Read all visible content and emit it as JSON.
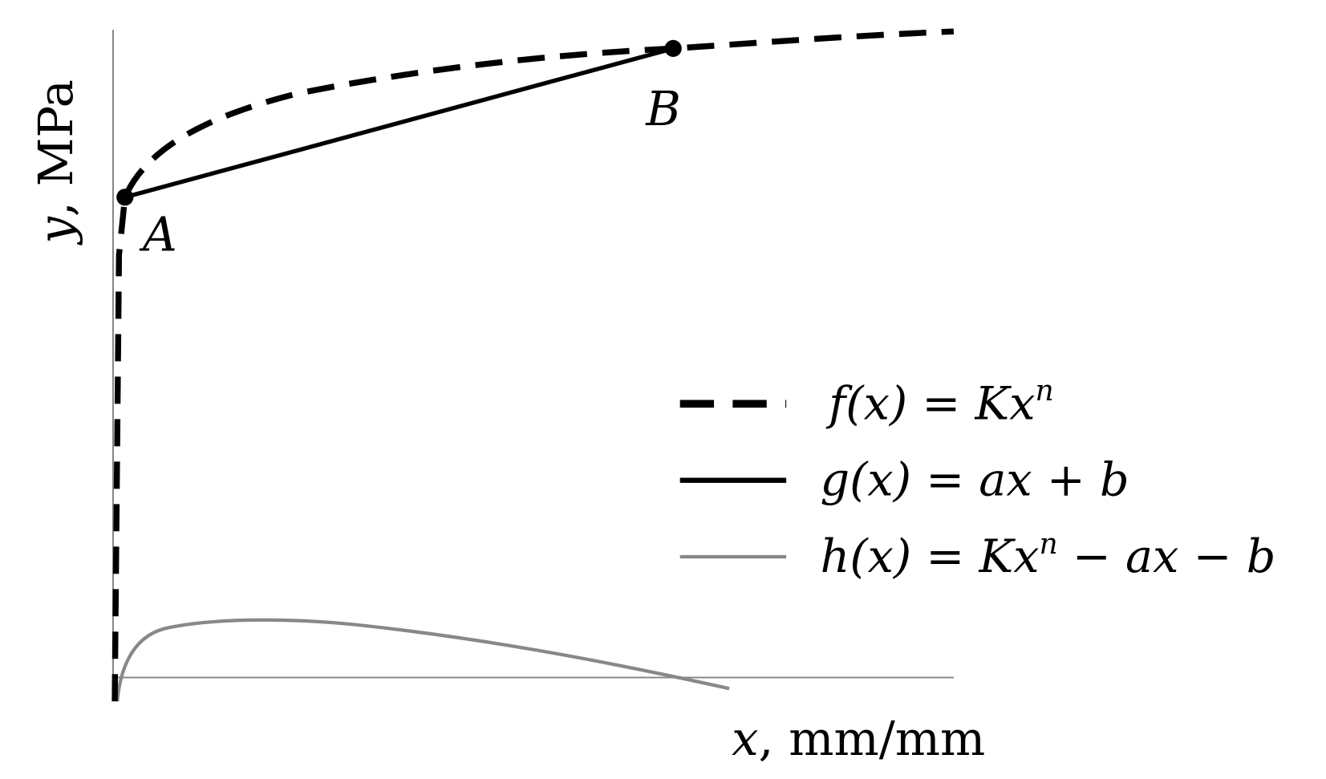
{
  "axes": {
    "x_label": {
      "var": "x",
      "unit": ", mm/mm"
    },
    "y_label": {
      "var": "y",
      "unit": ", MPa"
    }
  },
  "points": [
    {
      "label": "A"
    },
    {
      "label": "B"
    }
  ],
  "legend": [
    {
      "label": "f(x) = Kx",
      "sup": "n"
    },
    {
      "label": "g(x) = ax + b"
    },
    {
      "label": "h(x) = Kx",
      "sup": "n",
      "tail": " − ax − b"
    }
  ]
}
